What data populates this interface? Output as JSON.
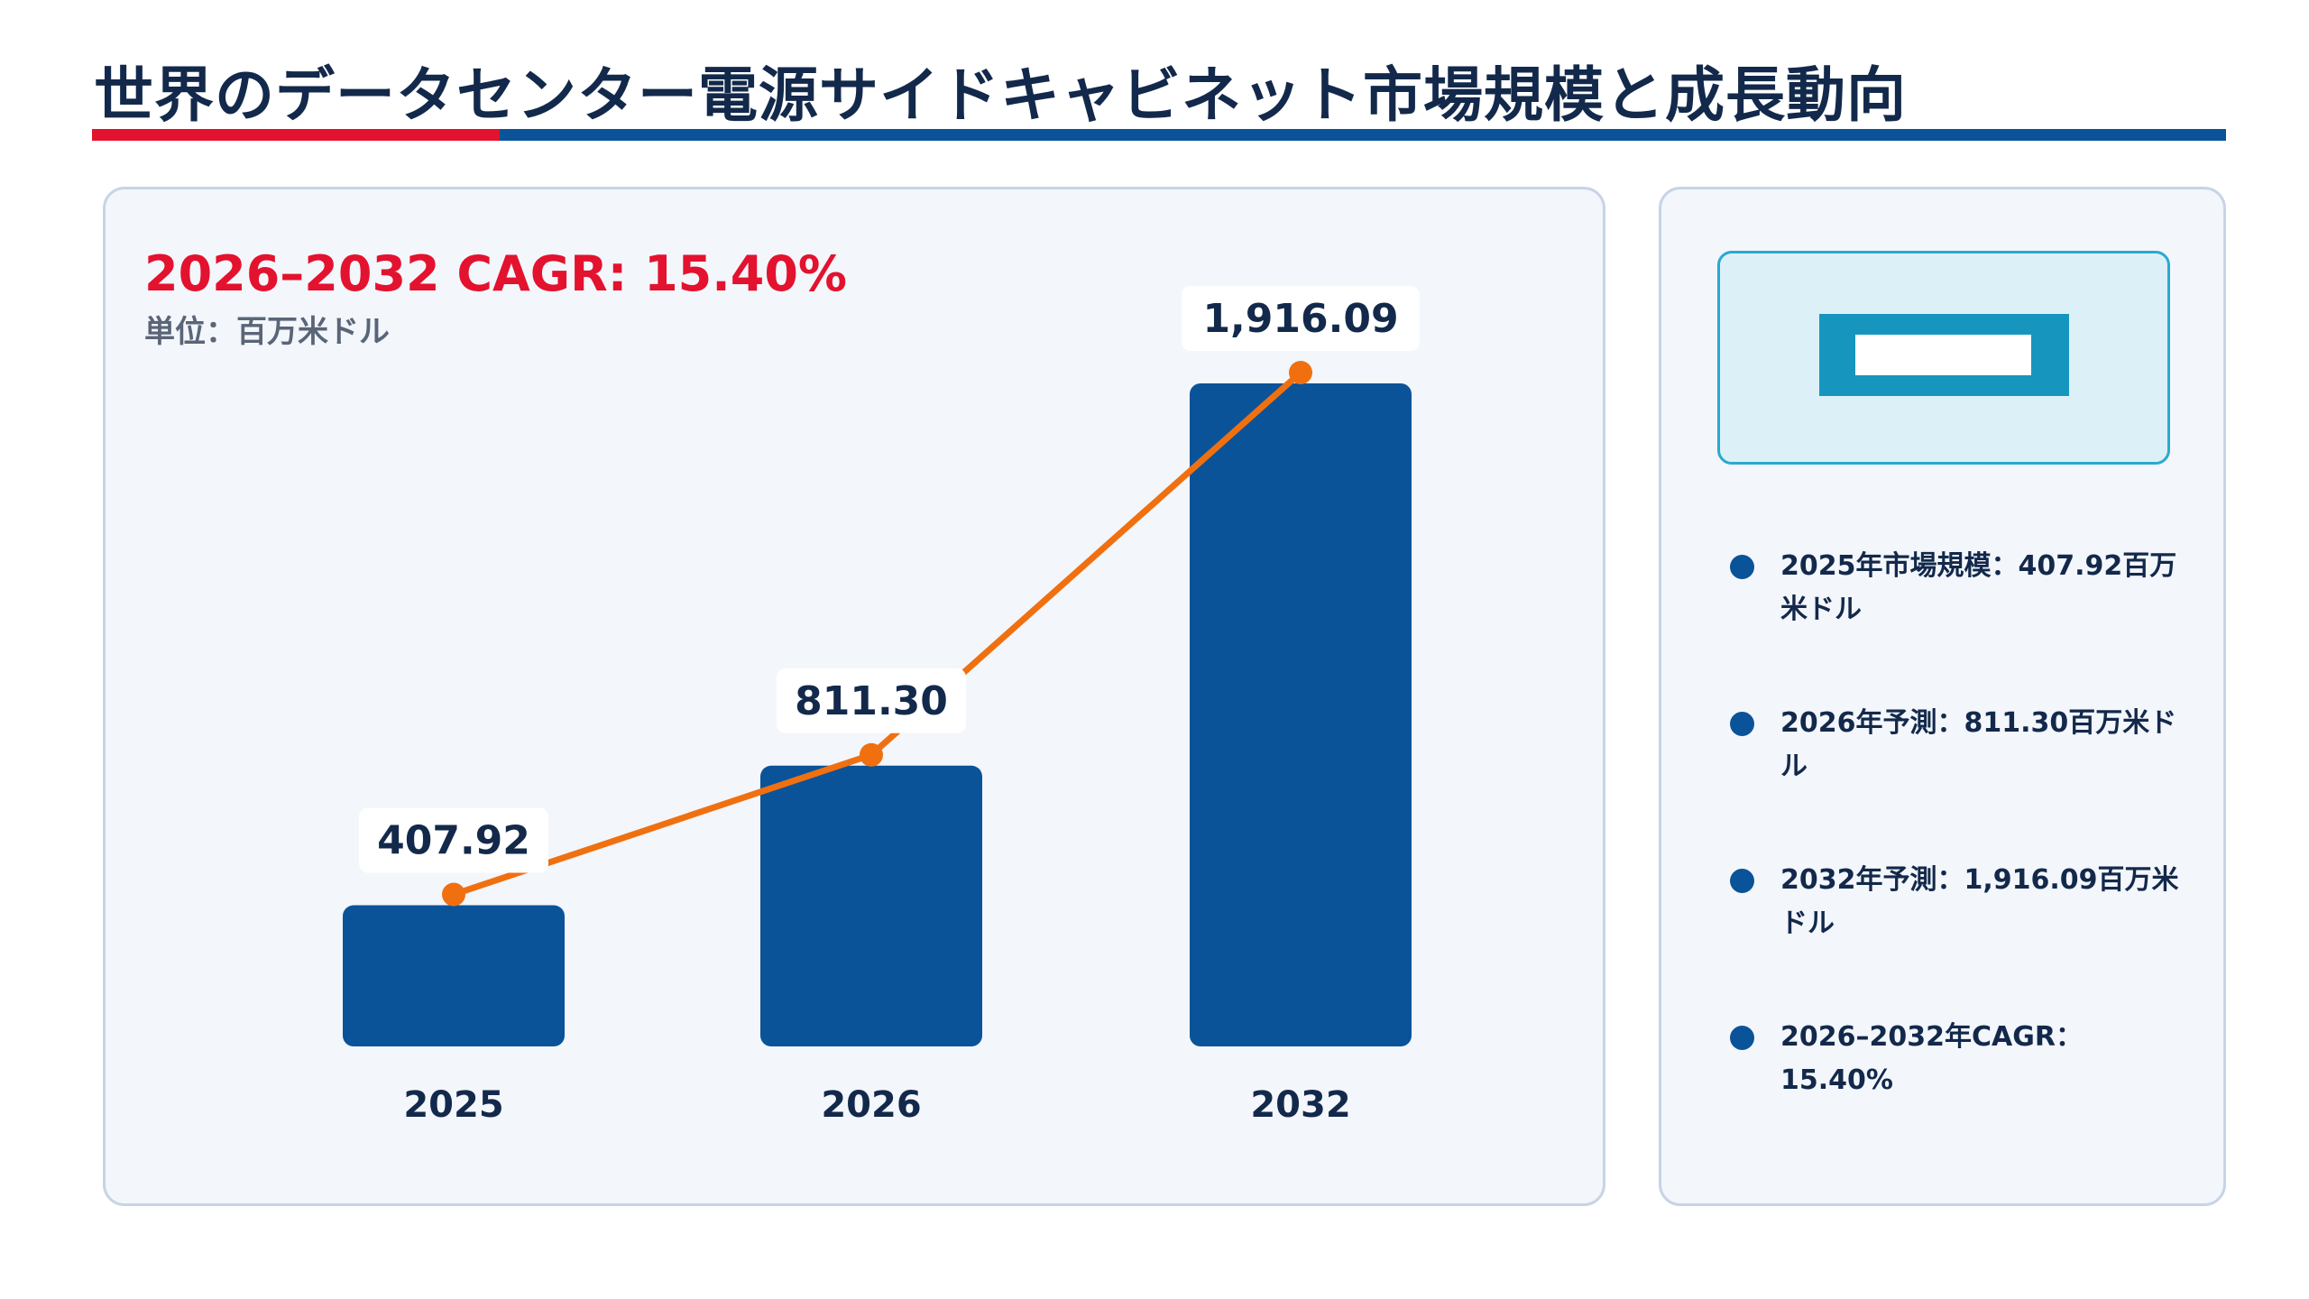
{
  "title": "世界のデータセンター電源サイドキャビネット市場規模と成長動向",
  "cagr_label": "2026–2032 CAGR: 15.40%",
  "unit_label": "単位：百万米ドル",
  "colors": {
    "bar": "#0b5399",
    "line": "#f07010",
    "accent_red": "#e3122e"
  },
  "chart_data": {
    "type": "bar",
    "categories": [
      "2025",
      "2026",
      "2032"
    ],
    "values": [
      407.92,
      811.3,
      1916.09
    ],
    "value_labels": [
      "407.92",
      "811.30",
      "1,916.09"
    ],
    "overlay": "line",
    "title": "",
    "xlabel": "",
    "ylabel": "",
    "ylim": [
      0,
      2000
    ]
  },
  "bullets": [
    "2025年市場規模：407.92百万米ドル",
    "2026年予測：811.30百万米ドル",
    "2032年予測：1,916.09百万米ドル",
    "2026–2032年CAGR：15.40%"
  ]
}
